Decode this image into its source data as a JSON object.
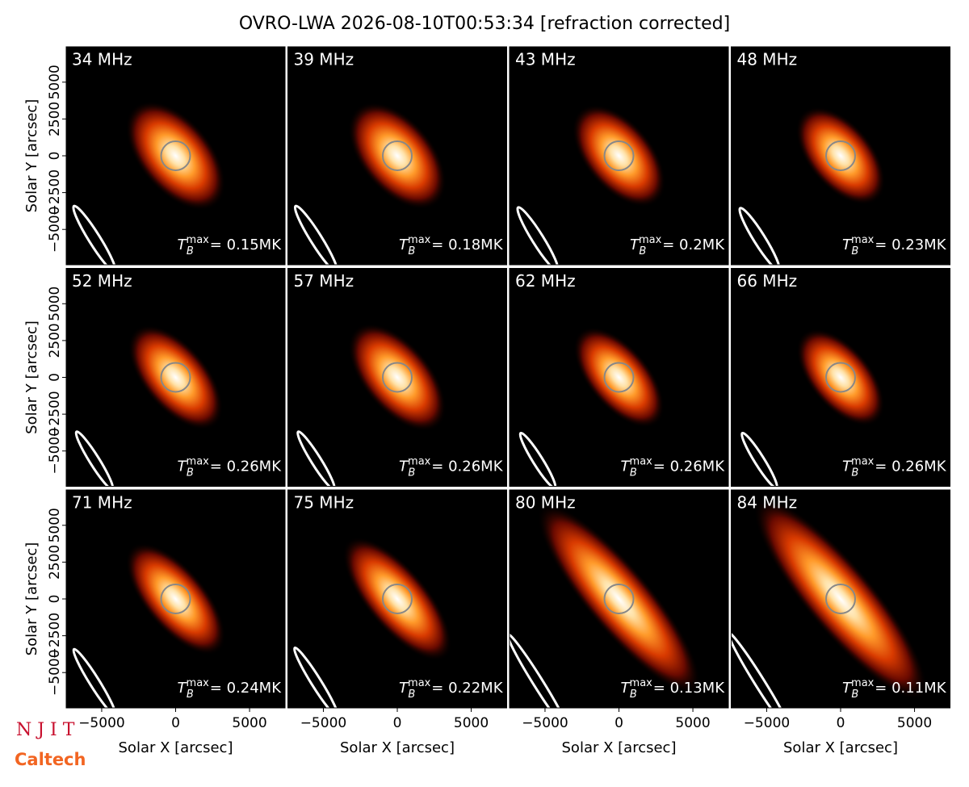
{
  "title": "OVRO-LWA 2026-08-10T00:53:34 [refraction corrected]",
  "axes": {
    "xlabel": "Solar X [arcsec]",
    "ylabel": "Solar Y [arcsec]",
    "xlim": [
      -7400,
      7400
    ],
    "ylim": [
      -7400,
      7400
    ],
    "xticks": [
      {
        "value": -5000,
        "label": "−5000"
      },
      0,
      5000
    ],
    "yticks": [
      {
        "value": -5000,
        "label": "−5000"
      },
      {
        "value": -2500,
        "label": "−2500"
      },
      0,
      2500,
      5000
    ]
  },
  "tb_symbol": {
    "base": "T",
    "sub": "B",
    "sup": "max"
  },
  "logos": [
    "N J I T",
    "Caltech"
  ],
  "chart_data": [
    {
      "type": "image",
      "label": "34 MHz",
      "tmax_text": "= 0.15MK"
    },
    {
      "type": "image",
      "label": "39 MHz",
      "tmax_text": "= 0.18MK"
    },
    {
      "type": "image",
      "label": "43 MHz",
      "tmax_text": "= 0.2MK"
    },
    {
      "type": "image",
      "label": "48 MHz",
      "tmax_text": "= 0.23MK"
    },
    {
      "type": "image",
      "label": "52 MHz",
      "tmax_text": "= 0.26MK"
    },
    {
      "type": "image",
      "label": "57 MHz",
      "tmax_text": "= 0.26MK"
    },
    {
      "type": "image",
      "label": "62 MHz",
      "tmax_text": "= 0.26MK"
    },
    {
      "type": "image",
      "label": "66 MHz",
      "tmax_text": "= 0.26MK"
    },
    {
      "type": "image",
      "label": "71 MHz",
      "tmax_text": "= 0.24MK"
    },
    {
      "type": "image",
      "label": "75 MHz",
      "tmax_text": "= 0.22MK"
    },
    {
      "type": "image",
      "label": "80 MHz",
      "tmax_text": "= 0.13MK"
    },
    {
      "type": "image",
      "label": "84 MHz",
      "tmax_text": "= 0.11MK"
    }
  ]
}
